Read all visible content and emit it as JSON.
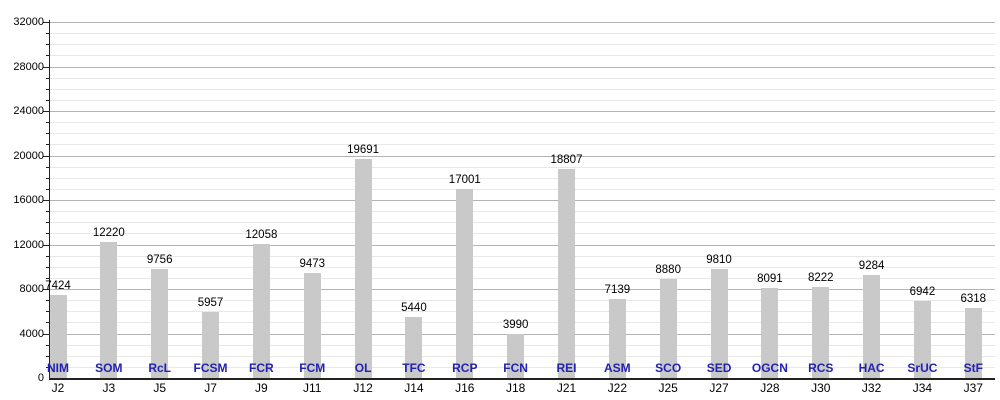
{
  "chart_data": {
    "type": "bar",
    "title": "",
    "xlabel": "",
    "ylabel": "",
    "categories": [
      "J2",
      "J3",
      "J5",
      "J7",
      "J9",
      "J11",
      "J12",
      "J14",
      "J16",
      "J18",
      "J21",
      "J22",
      "J25",
      "J27",
      "J28",
      "J30",
      "J32",
      "J34",
      "J37"
    ],
    "bar_labels": [
      "NIM",
      "SOM",
      "RcL",
      "FCSM",
      "FCR",
      "FCM",
      "OL",
      "TFC",
      "RCP",
      "FCN",
      "REI",
      "ASM",
      "SCO",
      "SED",
      "OGCN",
      "RCS",
      "HAC",
      "SrUC",
      "StF"
    ],
    "values": [
      7424,
      12220,
      9756,
      5957,
      12058,
      9473,
      19691,
      5440,
      17001,
      3990,
      18807,
      7139,
      8880,
      9810,
      8091,
      8222,
      9284,
      6942,
      6318
    ],
    "ylim": [
      0,
      32000
    ],
    "y_major_step": 4000,
    "y_minor_step": 1000,
    "y_tick_labels": [
      "0",
      "4000",
      "8000",
      "12000",
      "16000",
      "20000",
      "24000",
      "28000",
      "32000"
    ],
    "grid": "horizontal, major and minor lines",
    "legend": "none",
    "colors": {
      "bar": "#c9c9c9",
      "series_label": "#2222b2",
      "value_label": "#000000",
      "axis": "#222222",
      "major_grid": "#b3b3b3",
      "minor_grid": "#e8e8e8",
      "background": "#ffffff"
    }
  }
}
